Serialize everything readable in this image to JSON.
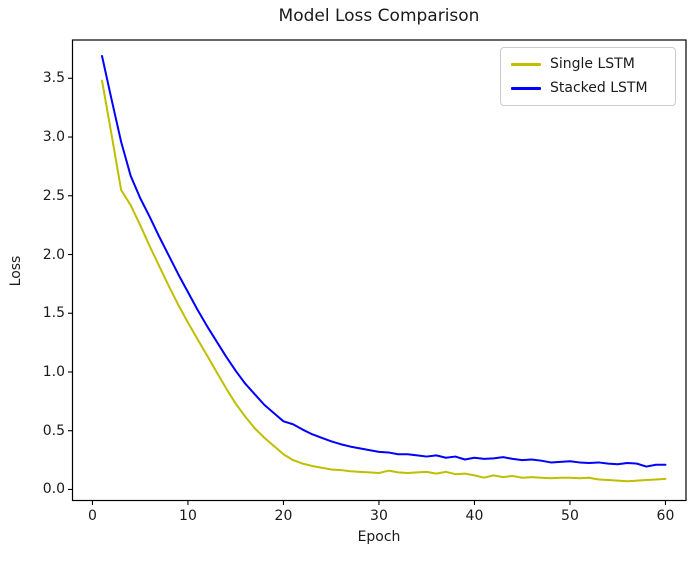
{
  "figure": {
    "background": "#ffffff",
    "axes_edge_color": "#000000",
    "text_color": "#1a1a1a"
  },
  "chart_data": {
    "type": "line",
    "title": "Model Loss Comparison",
    "xlabel": "Epoch",
    "ylabel": "Loss",
    "grid": false,
    "legend_position": "upper right",
    "x_start": 1,
    "xlim": [
      -2.09,
      62.15
    ],
    "ylim": [
      -0.094,
      3.826
    ],
    "x_ticks": [
      0,
      10,
      20,
      30,
      40,
      50,
      60
    ],
    "x_tick_labels": [
      "0",
      "10",
      "20",
      "30",
      "40",
      "50",
      "60"
    ],
    "y_ticks": [
      0.0,
      0.5,
      1.0,
      1.5,
      2.0,
      2.5,
      3.0,
      3.5
    ],
    "y_tick_labels": [
      "0.0",
      "0.5",
      "1.0",
      "1.5",
      "2.0",
      "2.5",
      "3.0",
      "3.5"
    ],
    "series": [
      {
        "name": "Single LSTM",
        "color": "#bfbf00",
        "values": [
          3.48,
          3.02,
          2.55,
          2.42,
          2.25,
          2.07,
          1.9,
          1.73,
          1.57,
          1.42,
          1.28,
          1.14,
          1.0,
          0.86,
          0.73,
          0.62,
          0.52,
          0.44,
          0.37,
          0.3,
          0.25,
          0.22,
          0.2,
          0.185,
          0.17,
          0.165,
          0.155,
          0.15,
          0.145,
          0.14,
          0.16,
          0.145,
          0.14,
          0.145,
          0.15,
          0.135,
          0.15,
          0.13,
          0.135,
          0.12,
          0.1,
          0.12,
          0.105,
          0.115,
          0.1,
          0.105,
          0.1,
          0.095,
          0.1,
          0.1,
          0.095,
          0.1,
          0.085,
          0.08,
          0.075,
          0.07,
          0.075,
          0.08,
          0.085,
          0.09
        ]
      },
      {
        "name": "Stacked LSTM",
        "color": "#0000ff",
        "values": [
          3.69,
          3.32,
          2.96,
          2.67,
          2.48,
          2.32,
          2.15,
          1.99,
          1.83,
          1.68,
          1.53,
          1.39,
          1.26,
          1.13,
          1.01,
          0.9,
          0.81,
          0.72,
          0.65,
          0.58,
          0.555,
          0.51,
          0.47,
          0.44,
          0.41,
          0.385,
          0.365,
          0.35,
          0.335,
          0.32,
          0.315,
          0.3,
          0.3,
          0.29,
          0.28,
          0.29,
          0.27,
          0.28,
          0.255,
          0.27,
          0.26,
          0.265,
          0.275,
          0.26,
          0.25,
          0.255,
          0.245,
          0.23,
          0.235,
          0.24,
          0.23,
          0.225,
          0.23,
          0.22,
          0.215,
          0.225,
          0.22,
          0.195,
          0.21,
          0.21
        ]
      }
    ]
  }
}
